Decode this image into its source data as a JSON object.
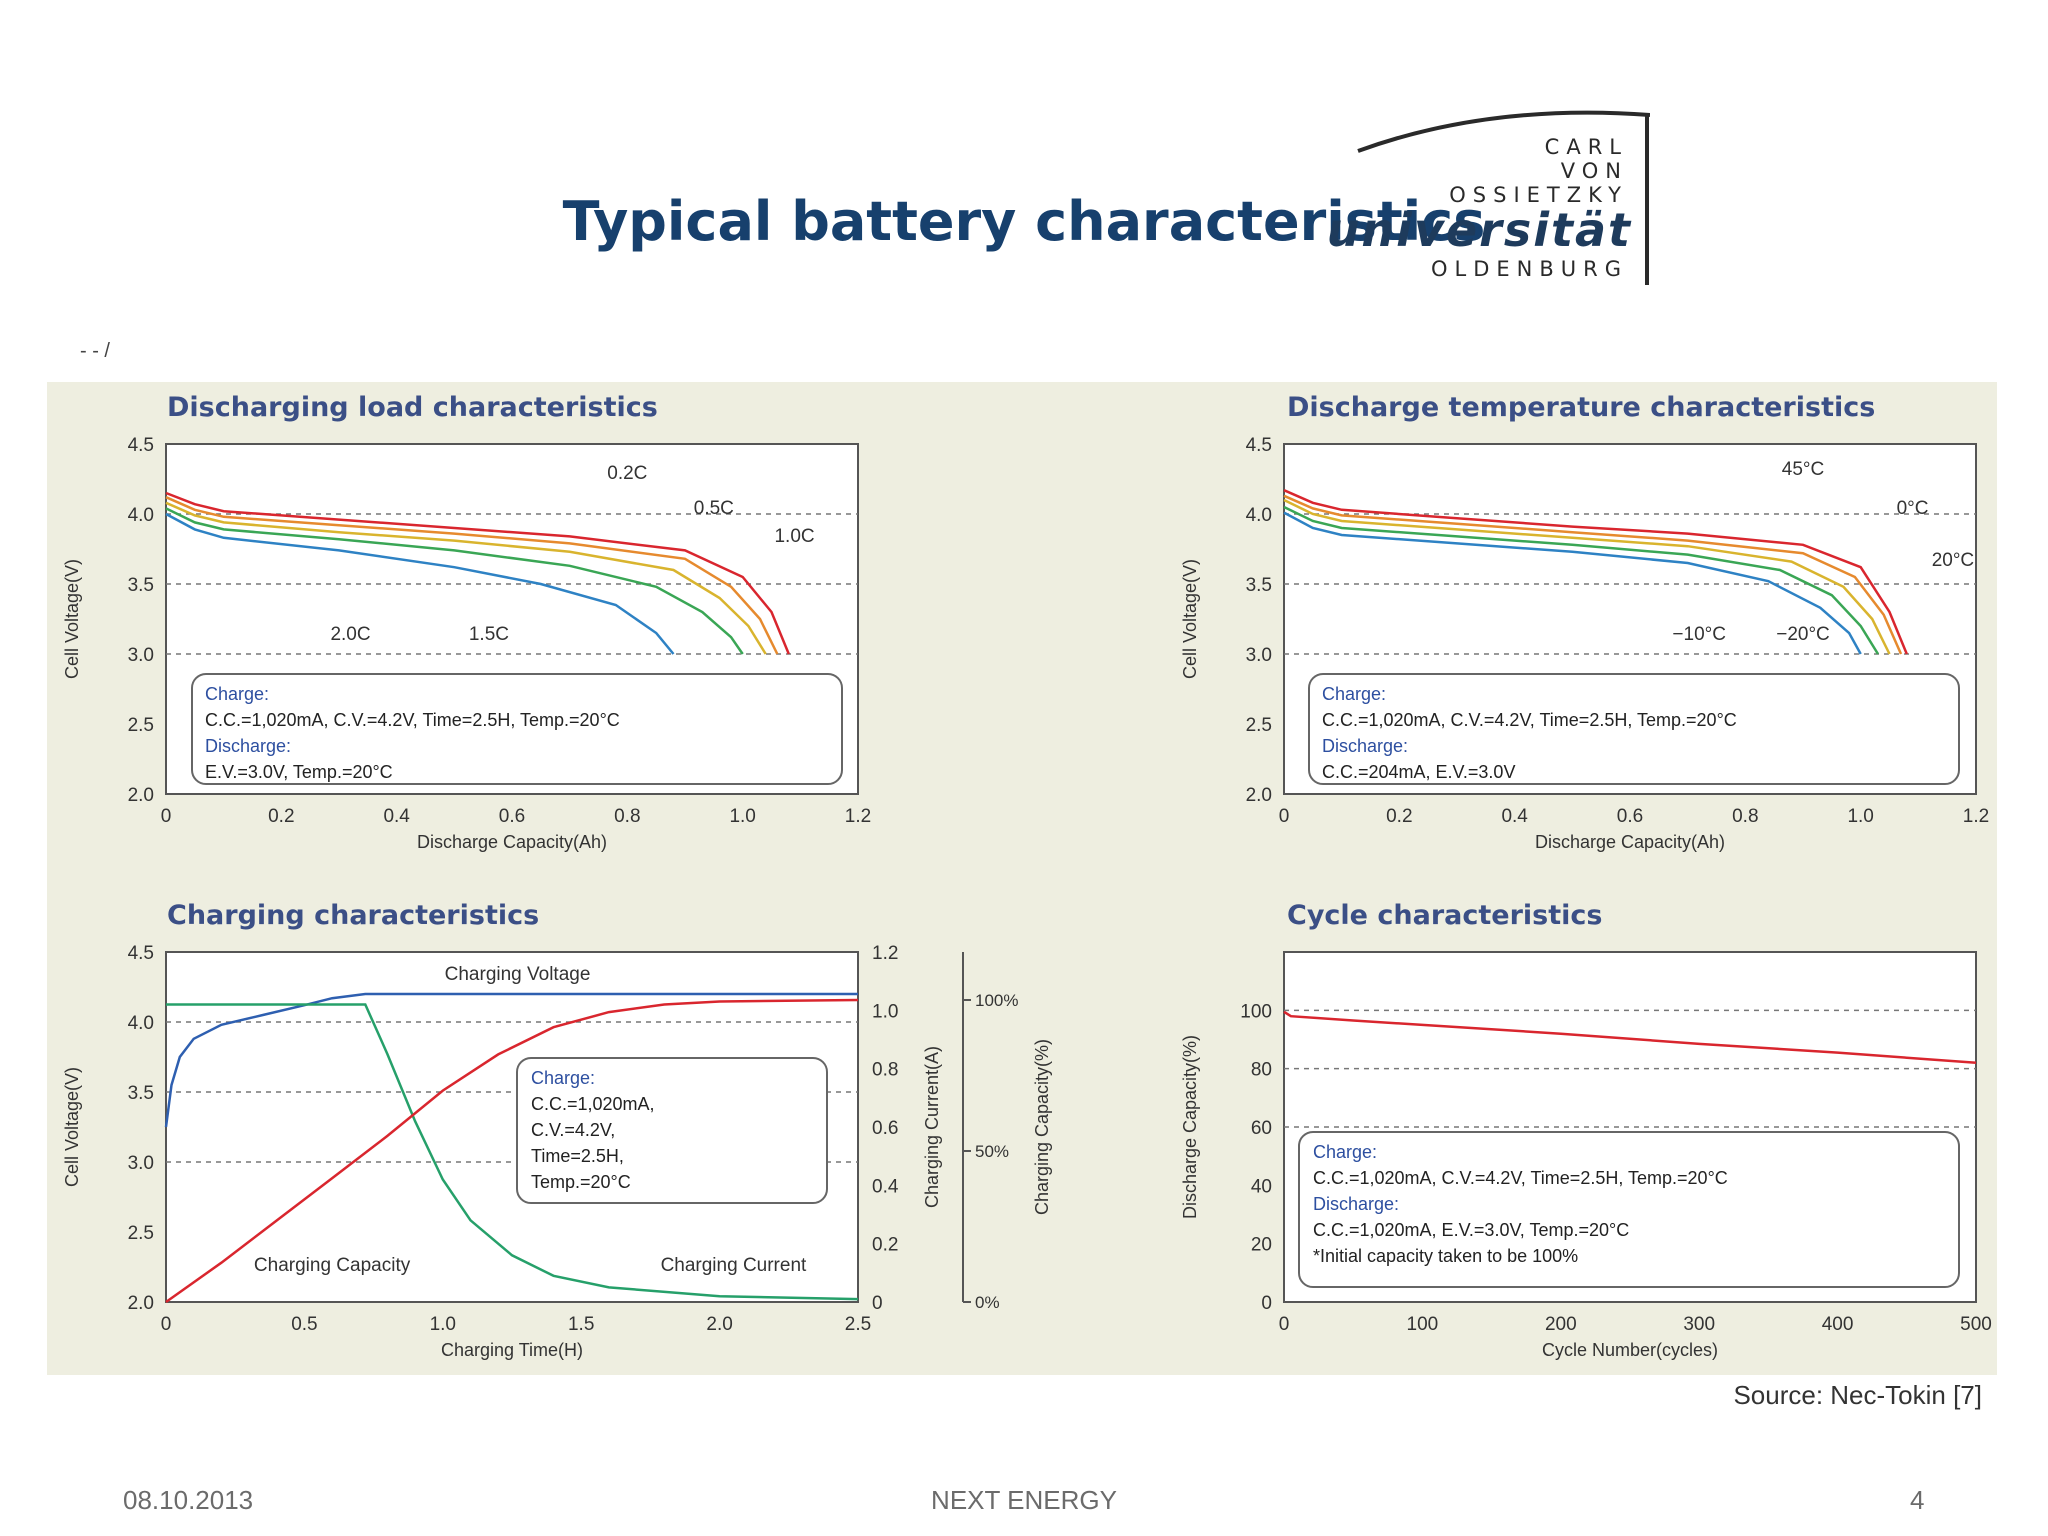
{
  "slide": {
    "title": "Typical battery characteristics",
    "source": "Source: Nec-Tokin [7]",
    "footer_date": "08.10.2013",
    "footer_center": "NEXT ENERGY",
    "page_number": "4",
    "stray_mark": "- - /"
  },
  "logo": {
    "line1": "CARL",
    "line2": "VON",
    "line3": "OSSIETZKY",
    "line4": "universität",
    "line5": "OLDENBURG"
  },
  "chart_data": [
    {
      "id": "c1",
      "type": "line",
      "title": "Discharging load characteristics",
      "xlabel": "Discharge Capacity(Ah)",
      "ylabel": "Cell Voltage(V)",
      "xlim": [
        0,
        1.2
      ],
      "ylim": [
        2.0,
        4.5
      ],
      "xticks": [
        "0",
        "0.2",
        "0.4",
        "0.6",
        "0.8",
        "1.0",
        "1.2"
      ],
      "yticks": [
        "2.0",
        "2.5",
        "3.0",
        "3.5",
        "4.0",
        "4.5"
      ],
      "ytick_values": [
        2.0,
        2.5,
        3.0,
        3.5,
        4.0,
        4.5
      ],
      "dashed_y": [
        3.0,
        3.5,
        4.0
      ],
      "series": [
        {
          "name": "0.2C",
          "color": "#d9262e",
          "points": [
            [
              0,
              4.15
            ],
            [
              0.05,
              4.07
            ],
            [
              0.1,
              4.02
            ],
            [
              0.3,
              3.96
            ],
            [
              0.5,
              3.9
            ],
            [
              0.7,
              3.84
            ],
            [
              0.9,
              3.74
            ],
            [
              1.0,
              3.55
            ],
            [
              1.05,
              3.3
            ],
            [
              1.08,
              3.0
            ]
          ]
        },
        {
          "name": "0.5C",
          "color": "#e68a2e",
          "points": [
            [
              0,
              4.12
            ],
            [
              0.05,
              4.03
            ],
            [
              0.1,
              3.98
            ],
            [
              0.3,
              3.92
            ],
            [
              0.5,
              3.86
            ],
            [
              0.7,
              3.79
            ],
            [
              0.9,
              3.68
            ],
            [
              0.98,
              3.48
            ],
            [
              1.03,
              3.25
            ],
            [
              1.06,
              3.0
            ]
          ]
        },
        {
          "name": "1.0C",
          "color": "#d9b42e",
          "points": [
            [
              0,
              4.08
            ],
            [
              0.05,
              3.99
            ],
            [
              0.1,
              3.94
            ],
            [
              0.3,
              3.87
            ],
            [
              0.5,
              3.81
            ],
            [
              0.7,
              3.73
            ],
            [
              0.88,
              3.6
            ],
            [
              0.96,
              3.4
            ],
            [
              1.01,
              3.2
            ],
            [
              1.04,
              3.0
            ]
          ]
        },
        {
          "name": "1.5C",
          "color": "#3aa655",
          "points": [
            [
              0,
              4.04
            ],
            [
              0.05,
              3.94
            ],
            [
              0.1,
              3.89
            ],
            [
              0.3,
              3.82
            ],
            [
              0.5,
              3.74
            ],
            [
              0.7,
              3.63
            ],
            [
              0.85,
              3.48
            ],
            [
              0.93,
              3.3
            ],
            [
              0.98,
              3.12
            ],
            [
              1.0,
              3.0
            ]
          ]
        },
        {
          "name": "2.0C",
          "color": "#2e82c4",
          "points": [
            [
              0,
              4.0
            ],
            [
              0.05,
              3.89
            ],
            [
              0.1,
              3.83
            ],
            [
              0.3,
              3.74
            ],
            [
              0.5,
              3.62
            ],
            [
              0.65,
              3.5
            ],
            [
              0.78,
              3.35
            ],
            [
              0.85,
              3.15
            ],
            [
              0.88,
              3.0
            ]
          ]
        }
      ],
      "annotations": [
        {
          "text": "0.2C",
          "x": 0.8,
          "y": 4.25
        },
        {
          "text": "0.5C",
          "x": 0.95,
          "y": 4.0
        },
        {
          "text": "1.0C",
          "x": 1.09,
          "y": 3.8
        },
        {
          "text": "2.0C",
          "x": 0.32,
          "y": 3.1
        },
        {
          "text": "1.5C",
          "x": 0.56,
          "y": 3.1
        }
      ],
      "legend_box": [
        "Charge:",
        "C.C.=1,020mA, C.V.=4.2V, Time=2.5H, Temp.=20°C",
        "Discharge:",
        "E.V.=3.0V,  Temp.=20°C"
      ]
    },
    {
      "id": "c2",
      "type": "line",
      "title": "Discharge temperature characteristics",
      "xlabel": "Discharge Capacity(Ah)",
      "ylabel": "Cell Voltage(V)",
      "xlim": [
        0,
        1.2
      ],
      "ylim": [
        2.0,
        4.5
      ],
      "xticks": [
        "0",
        "0.2",
        "0.4",
        "0.6",
        "0.8",
        "1.0",
        "1.2"
      ],
      "yticks": [
        "2.0",
        "2.5",
        "3.0",
        "3.5",
        "4.0",
        "4.5"
      ],
      "ytick_values": [
        2.0,
        2.5,
        3.0,
        3.5,
        4.0,
        4.5
      ],
      "dashed_y": [
        3.0,
        3.5,
        4.0
      ],
      "series": [
        {
          "name": "45°C",
          "color": "#d9262e",
          "points": [
            [
              0,
              4.17
            ],
            [
              0.05,
              4.08
            ],
            [
              0.1,
              4.03
            ],
            [
              0.3,
              3.97
            ],
            [
              0.5,
              3.91
            ],
            [
              0.7,
              3.86
            ],
            [
              0.9,
              3.78
            ],
            [
              1.0,
              3.62
            ],
            [
              1.05,
              3.3
            ],
            [
              1.08,
              3.0
            ]
          ]
        },
        {
          "name": "0°C",
          "color": "#e68a2e",
          "points": [
            [
              0,
              4.13
            ],
            [
              0.05,
              4.04
            ],
            [
              0.1,
              3.99
            ],
            [
              0.3,
              3.93
            ],
            [
              0.5,
              3.87
            ],
            [
              0.7,
              3.81
            ],
            [
              0.9,
              3.72
            ],
            [
              0.99,
              3.55
            ],
            [
              1.04,
              3.28
            ],
            [
              1.07,
              3.0
            ]
          ]
        },
        {
          "name": "20°C",
          "color": "#d9b42e",
          "points": [
            [
              0,
              4.1
            ],
            [
              0.05,
              4.0
            ],
            [
              0.1,
              3.95
            ],
            [
              0.3,
              3.89
            ],
            [
              0.5,
              3.83
            ],
            [
              0.7,
              3.77
            ],
            [
              0.88,
              3.66
            ],
            [
              0.97,
              3.48
            ],
            [
              1.02,
              3.25
            ],
            [
              1.05,
              3.0
            ]
          ]
        },
        {
          "name": "-10°C",
          "color": "#3aa655",
          "points": [
            [
              0,
              4.05
            ],
            [
              0.05,
              3.95
            ],
            [
              0.1,
              3.9
            ],
            [
              0.3,
              3.84
            ],
            [
              0.5,
              3.78
            ],
            [
              0.7,
              3.71
            ],
            [
              0.86,
              3.6
            ],
            [
              0.95,
              3.42
            ],
            [
              1.0,
              3.2
            ],
            [
              1.03,
              3.0
            ]
          ]
        },
        {
          "name": "-20°C",
          "color": "#2e82c4",
          "points": [
            [
              0,
              4.01
            ],
            [
              0.05,
              3.9
            ],
            [
              0.1,
              3.85
            ],
            [
              0.3,
              3.79
            ],
            [
              0.5,
              3.73
            ],
            [
              0.7,
              3.65
            ],
            [
              0.84,
              3.52
            ],
            [
              0.93,
              3.33
            ],
            [
              0.98,
              3.15
            ],
            [
              1.0,
              3.0
            ]
          ]
        }
      ],
      "annotations": [
        {
          "text": "45°C",
          "x": 0.9,
          "y": 4.28
        },
        {
          "text": "0°C",
          "x": 1.09,
          "y": 4.0
        },
        {
          "text": "20°C",
          "x": 1.16,
          "y": 3.63
        },
        {
          "text": "−10°C",
          "x": 0.72,
          "y": 3.1
        },
        {
          "text": "−20°C",
          "x": 0.9,
          "y": 3.1
        }
      ],
      "legend_box": [
        "Charge:",
        "C.C.=1,020mA, C.V.=4.2V, Time=2.5H, Temp.=20°C",
        "Discharge:",
        "C.C.=204mA, E.V.=3.0V"
      ]
    },
    {
      "id": "c3",
      "type": "line",
      "title": "Charging characteristics",
      "xlabel": "Charging Time(H)",
      "ylabel": "Cell Voltage(V)",
      "ylabel2": "Charging Current(A)",
      "ylabel3": "Charging Capacity(%)",
      "xlim": [
        0,
        2.5
      ],
      "ylim": [
        2.0,
        4.5
      ],
      "y2lim": [
        0,
        1.2
      ],
      "xticks": [
        "0",
        "0.5",
        "1.0",
        "1.5",
        "2.0",
        "2.5"
      ],
      "yticks": [
        "2.0",
        "2.5",
        "3.0",
        "3.5",
        "4.0",
        "4.5"
      ],
      "ytick_values": [
        2.0,
        2.5,
        3.0,
        3.5,
        4.0,
        4.5
      ],
      "y2ticks": [
        "0",
        "0.2",
        "0.4",
        "0.6",
        "0.8",
        "1.0",
        "1.2"
      ],
      "y2tick_values": [
        0,
        0.2,
        0.4,
        0.6,
        0.8,
        1.0,
        1.2
      ],
      "y3ticks": [
        "0%",
        "50%",
        "100%"
      ],
      "y3tick_values": [
        0,
        50,
        100
      ],
      "dashed_y": [
        3.0,
        3.5,
        4.0
      ],
      "series": [
        {
          "name": "Charging Voltage",
          "axis": "y",
          "color": "#2e5fb0",
          "points": [
            [
              0,
              3.25
            ],
            [
              0.02,
              3.55
            ],
            [
              0.05,
              3.75
            ],
            [
              0.1,
              3.88
            ],
            [
              0.2,
              3.98
            ],
            [
              0.35,
              4.05
            ],
            [
              0.5,
              4.12
            ],
            [
              0.6,
              4.17
            ],
            [
              0.72,
              4.2
            ],
            [
              2.5,
              4.2
            ]
          ]
        },
        {
          "name": "Charging Current",
          "axis": "y2",
          "color": "#26a06a",
          "points": [
            [
              0,
              1.02
            ],
            [
              0.72,
              1.02
            ],
            [
              0.8,
              0.85
            ],
            [
              0.9,
              0.62
            ],
            [
              1.0,
              0.42
            ],
            [
              1.1,
              0.28
            ],
            [
              1.25,
              0.16
            ],
            [
              1.4,
              0.09
            ],
            [
              1.6,
              0.05
            ],
            [
              2.0,
              0.02
            ],
            [
              2.5,
              0.01
            ]
          ]
        },
        {
          "name": "Charging Capacity",
          "axis": "y3",
          "color": "#d9262e",
          "points": [
            [
              0,
              0
            ],
            [
              0.2,
              13
            ],
            [
              0.4,
              27
            ],
            [
              0.6,
              41
            ],
            [
              0.8,
              55
            ],
            [
              1.0,
              70
            ],
            [
              1.2,
              82
            ],
            [
              1.4,
              91
            ],
            [
              1.6,
              96
            ],
            [
              1.8,
              98.5
            ],
            [
              2.0,
              99.5
            ],
            [
              2.5,
              100
            ]
          ]
        }
      ],
      "series_labels": [
        {
          "text": "Charging Voltage",
          "x": 1.27,
          "y": 4.3
        },
        {
          "text": "Charging Capacity",
          "x": 0.6,
          "y": 2.22
        },
        {
          "text": "Charging Current",
          "x": 2.05,
          "y": 2.22
        }
      ],
      "legend_box": [
        "Charge:",
        "C.C.=1,020mA,",
        "C.V.=4.2V,",
        "Time=2.5H,",
        "Temp.=20°C"
      ]
    },
    {
      "id": "c4",
      "type": "line",
      "title": "Cycle characteristics",
      "xlabel": "Cycle Number(cycles)",
      "ylabel": "Discharge Capacity(%)",
      "xlim": [
        0,
        500
      ],
      "ylim": [
        0,
        120
      ],
      "xticks": [
        "0",
        "100",
        "200",
        "300",
        "400",
        "500"
      ],
      "yticks": [
        "0",
        "20",
        "40",
        "60",
        "80",
        "100"
      ],
      "ytick_values": [
        0,
        20,
        40,
        60,
        80,
        100
      ],
      "dashed_y": [
        60,
        80,
        100
      ],
      "series": [
        {
          "name": "Discharge capacity",
          "color": "#d9262e",
          "points": [
            [
              0,
              99.5
            ],
            [
              5,
              98
            ],
            [
              50,
              96.5
            ],
            [
              100,
              95
            ],
            [
              200,
              92
            ],
            [
              300,
              88.5
            ],
            [
              400,
              85.5
            ],
            [
              500,
              82
            ]
          ]
        }
      ],
      "legend_box": [
        "Charge:",
        "C.C.=1,020mA, C.V.=4.2V, Time=2.5H, Temp.=20°C",
        "Discharge:",
        "C.C.=1,020mA, E.V.=3.0V, Temp.=20°C",
        "*Initial capacity taken to be 100%"
      ]
    }
  ]
}
